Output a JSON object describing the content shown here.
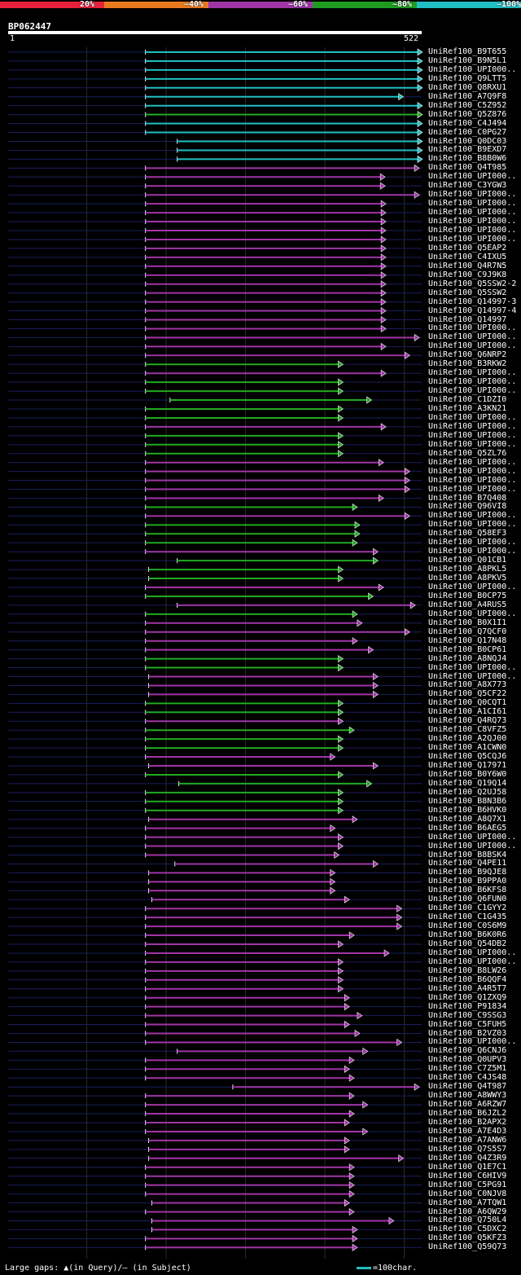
{
  "header": {
    "buckets": [
      {
        "label": "20%",
        "color": "#e8203c"
      },
      {
        "label": "~40%",
        "color": "#ea7a20"
      },
      {
        "label": "~60%",
        "color": "#a035a8"
      },
      {
        "label": "~80%",
        "color": "#1e9c22"
      },
      {
        "label": "~100%",
        "color": "#1fbfc3"
      }
    ]
  },
  "query": {
    "id": "BP062447",
    "start_label": "1",
    "end_label": "522",
    "length": 522
  },
  "colors": {
    "cyan": "#1fbfc3",
    "green": "#22aa22",
    "purple": "#a035a8",
    "dim": "#1a1f5c",
    "gap": "#ffffaa"
  },
  "chart_data": {
    "type": "alignment-map",
    "x_range": [
      1,
      522
    ],
    "hits": [
      {
        "id": "UniRef100_B9T655",
        "s": 174,
        "e": 522,
        "c": "cyan"
      },
      {
        "id": "UniRef100_B9N5L1",
        "s": 174,
        "e": 522,
        "c": "cyan"
      },
      {
        "id": "UniRef100_UPI000..",
        "s": 174,
        "e": 522,
        "c": "cyan"
      },
      {
        "id": "UniRef100_Q9LTT5",
        "s": 174,
        "e": 522,
        "c": "cyan"
      },
      {
        "id": "UniRef100_Q8RXU1",
        "s": 174,
        "e": 522,
        "c": "cyan"
      },
      {
        "id": "UniRef100_A7Q9F8",
        "s": 174,
        "e": 498,
        "c": "cyan"
      },
      {
        "id": "UniRef100_C5Z952",
        "s": 174,
        "e": 522,
        "c": "cyan"
      },
      {
        "id": "UniRef100_Q5Z876",
        "s": 174,
        "e": 522,
        "c": "green"
      },
      {
        "id": "UniRef100_C4J494",
        "s": 174,
        "e": 522,
        "c": "cyan"
      },
      {
        "id": "UniRef100_C0PG27",
        "s": 174,
        "e": 522,
        "c": "cyan"
      },
      {
        "id": "UniRef100_Q0DC03",
        "s": 214,
        "e": 522,
        "c": "cyan"
      },
      {
        "id": "UniRef100_B9EXD7",
        "s": 214,
        "e": 522,
        "c": "cyan"
      },
      {
        "id": "UniRef100_B8B0W6",
        "s": 214,
        "e": 522,
        "c": "cyan"
      },
      {
        "id": "UniRef100_Q4T985",
        "s": 174,
        "e": 518,
        "c": "purple"
      },
      {
        "id": "UniRef100_UPI000..",
        "s": 174,
        "e": 475,
        "c": "purple"
      },
      {
        "id": "UniRef100_C3YGW3",
        "s": 174,
        "e": 475,
        "c": "purple"
      },
      {
        "id": "UniRef100_UPI000..",
        "s": 174,
        "e": 518,
        "c": "purple"
      },
      {
        "id": "UniRef100_UPI000..",
        "s": 174,
        "e": 476,
        "c": "purple"
      },
      {
        "id": "UniRef100_UPI000..",
        "s": 174,
        "e": 476,
        "c": "purple"
      },
      {
        "id": "UniRef100_UPI000..",
        "s": 174,
        "e": 476,
        "c": "purple"
      },
      {
        "id": "UniRef100_UPI000..",
        "s": 174,
        "e": 476,
        "c": "purple"
      },
      {
        "id": "UniRef100_UPI000..",
        "s": 174,
        "e": 476,
        "c": "purple"
      },
      {
        "id": "UniRef100_Q5EAP2",
        "s": 174,
        "e": 476,
        "c": "purple"
      },
      {
        "id": "UniRef100_C4IXU5",
        "s": 174,
        "e": 476,
        "c": "purple"
      },
      {
        "id": "UniRef100_Q4R7N5",
        "s": 174,
        "e": 476,
        "c": "purple"
      },
      {
        "id": "UniRef100_C9J9K8",
        "s": 174,
        "e": 476,
        "c": "purple"
      },
      {
        "id": "UniRef100_Q5SSW2-2",
        "s": 174,
        "e": 476,
        "c": "purple"
      },
      {
        "id": "UniRef100_Q5SSW2",
        "s": 174,
        "e": 476,
        "c": "purple"
      },
      {
        "id": "UniRef100_Q14997-3",
        "s": 174,
        "e": 476,
        "c": "purple"
      },
      {
        "id": "UniRef100_Q14997-4",
        "s": 174,
        "e": 476,
        "c": "purple"
      },
      {
        "id": "UniRef100_Q14997",
        "s": 174,
        "e": 476,
        "c": "purple"
      },
      {
        "id": "UniRef100_UPI000..",
        "s": 174,
        "e": 476,
        "c": "purple"
      },
      {
        "id": "UniRef100_UPI000..",
        "s": 174,
        "e": 518,
        "c": "purple"
      },
      {
        "id": "UniRef100_UPI000..",
        "s": 174,
        "e": 476,
        "c": "purple"
      },
      {
        "id": "UniRef100_Q6NRP2",
        "s": 174,
        "e": 506,
        "c": "purple"
      },
      {
        "id": "UniRef100_B3RKW2",
        "s": 174,
        "e": 422,
        "c": "green"
      },
      {
        "id": "UniRef100_UPI000..",
        "s": 174,
        "e": 476,
        "c": "purple"
      },
      {
        "id": "UniRef100_UPI000..",
        "s": 174,
        "e": 422,
        "c": "green"
      },
      {
        "id": "UniRef100_UPI000..",
        "s": 174,
        "e": 422,
        "c": "green"
      },
      {
        "id": "UniRef100_C1DZI0",
        "s": 205,
        "e": 458,
        "c": "green"
      },
      {
        "id": "UniRef100_A3KN21",
        "s": 174,
        "e": 422,
        "c": "green"
      },
      {
        "id": "UniRef100_UPI000..",
        "s": 174,
        "e": 422,
        "c": "green"
      },
      {
        "id": "UniRef100_UPI000..",
        "s": 174,
        "e": 476,
        "c": "purple"
      },
      {
        "id": "UniRef100_UPI000..",
        "s": 174,
        "e": 422,
        "c": "green"
      },
      {
        "id": "UniRef100_UPI000..",
        "s": 174,
        "e": 422,
        "c": "green"
      },
      {
        "id": "UniRef100_Q5ZL76",
        "s": 174,
        "e": 422,
        "c": "green"
      },
      {
        "id": "UniRef100_UPI000..",
        "s": 174,
        "e": 473,
        "c": "purple"
      },
      {
        "id": "UniRef100_UPI000..",
        "s": 174,
        "e": 506,
        "c": "purple"
      },
      {
        "id": "UniRef100_UPI000..",
        "s": 174,
        "e": 506,
        "c": "purple"
      },
      {
        "id": "UniRef100_UPI000..",
        "s": 174,
        "e": 506,
        "c": "purple"
      },
      {
        "id": "UniRef100_B7Q408",
        "s": 174,
        "e": 473,
        "c": "purple"
      },
      {
        "id": "UniRef100_Q96VI8",
        "s": 174,
        "e": 440,
        "c": "green"
      },
      {
        "id": "UniRef100_UPI000..",
        "s": 174,
        "e": 506,
        "c": "purple"
      },
      {
        "id": "UniRef100_UPI000..",
        "s": 174,
        "e": 443,
        "c": "green"
      },
      {
        "id": "UniRef100_Q58EF3",
        "s": 174,
        "e": 443,
        "c": "green"
      },
      {
        "id": "UniRef100_UPI000..",
        "s": 174,
        "e": 440,
        "c": "green"
      },
      {
        "id": "UniRef100_UPI000..",
        "s": 174,
        "e": 466,
        "c": "purple"
      },
      {
        "id": "UniRef100_Q01CB1",
        "s": 214,
        "e": 466,
        "c": "green"
      },
      {
        "id": "UniRef100_A8PKL5",
        "s": 178,
        "e": 422,
        "c": "green"
      },
      {
        "id": "UniRef100_A8PKV5",
        "s": 178,
        "e": 422,
        "c": "green"
      },
      {
        "id": "UniRef100_UPI000..",
        "s": 174,
        "e": 473,
        "c": "purple"
      },
      {
        "id": "UniRef100_B0CP75",
        "s": 174,
        "e": 460,
        "c": "green"
      },
      {
        "id": "UniRef100_A4RUS5",
        "s": 214,
        "e": 513,
        "c": "purple"
      },
      {
        "id": "UniRef100_UPI000..",
        "s": 174,
        "e": 440,
        "c": "green"
      },
      {
        "id": "UniRef100_B0X1I1",
        "s": 174,
        "e": 446,
        "c": "purple"
      },
      {
        "id": "UniRef100_Q7QCF0",
        "s": 174,
        "e": 506,
        "c": "purple"
      },
      {
        "id": "UniRef100_Q17N48",
        "s": 174,
        "e": 440,
        "c": "purple"
      },
      {
        "id": "UniRef100_B0CP61",
        "s": 174,
        "e": 460,
        "c": "purple"
      },
      {
        "id": "UniRef100_A8NQJ4",
        "s": 174,
        "e": 422,
        "c": "green"
      },
      {
        "id": "UniRef100_UPI000..",
        "s": 174,
        "e": 422,
        "c": "green"
      },
      {
        "id": "UniRef100_UPI000..",
        "s": 178,
        "e": 466,
        "c": "purple"
      },
      {
        "id": "UniRef100_A8X773",
        "s": 178,
        "e": 466,
        "c": "purple"
      },
      {
        "id": "UniRef100_Q5CF22",
        "s": 178,
        "e": 466,
        "c": "purple"
      },
      {
        "id": "UniRef100_Q0CQT1",
        "s": 174,
        "e": 422,
        "c": "green"
      },
      {
        "id": "UniRef100_A1CI61",
        "s": 174,
        "e": 422,
        "c": "green"
      },
      {
        "id": "UniRef100_Q4RQ73",
        "s": 174,
        "e": 422,
        "c": "purple"
      },
      {
        "id": "UniRef100_C8VFZ5",
        "s": 174,
        "e": 436,
        "c": "green"
      },
      {
        "id": "UniRef100_A2QJ00",
        "s": 174,
        "e": 422,
        "c": "green"
      },
      {
        "id": "UniRef100_A1CWN0",
        "s": 174,
        "e": 422,
        "c": "green"
      },
      {
        "id": "UniRef100_Q5CQJ6",
        "s": 174,
        "e": 412,
        "c": "purple"
      },
      {
        "id": "UniRef100_Q17971",
        "s": 178,
        "e": 466,
        "c": "purple"
      },
      {
        "id": "UniRef100_B0Y6W0",
        "s": 174,
        "e": 422,
        "c": "green"
      },
      {
        "id": "UniRef100_Q19Q14",
        "s": 216,
        "e": 458,
        "c": "green"
      },
      {
        "id": "UniRef100_Q2UJ58",
        "s": 174,
        "e": 422,
        "c": "green"
      },
      {
        "id": "UniRef100_B8N3B6",
        "s": 174,
        "e": 422,
        "c": "green"
      },
      {
        "id": "UniRef100_B6HVK0",
        "s": 174,
        "e": 422,
        "c": "green"
      },
      {
        "id": "UniRef100_A8Q7X1",
        "s": 178,
        "e": 440,
        "c": "purple"
      },
      {
        "id": "UniRef100_B6AEG5",
        "s": 174,
        "e": 412,
        "c": "purple"
      },
      {
        "id": "UniRef100_UPI000..",
        "s": 174,
        "e": 422,
        "c": "purple"
      },
      {
        "id": "UniRef100_UPI000..",
        "s": 174,
        "e": 422,
        "c": "purple"
      },
      {
        "id": "UniRef100_B8BSK4",
        "s": 174,
        "e": 417,
        "c": "purple"
      },
      {
        "id": "UniRef100_Q4PE11",
        "s": 211,
        "e": 466,
        "c": "purple"
      },
      {
        "id": "UniRef100_B9QJE8",
        "s": 178,
        "e": 412,
        "c": "purple"
      },
      {
        "id": "UniRef100_B9PPA0",
        "s": 178,
        "e": 412,
        "c": "purple"
      },
      {
        "id": "UniRef100_B6KFS8",
        "s": 178,
        "e": 412,
        "c": "purple"
      },
      {
        "id": "UniRef100_Q6FUN0",
        "s": 182,
        "e": 430,
        "c": "purple"
      },
      {
        "id": "UniRef100_C1GYY2",
        "s": 174,
        "e": 496,
        "c": "purple"
      },
      {
        "id": "UniRef100_C1G435",
        "s": 174,
        "e": 496,
        "c": "purple"
      },
      {
        "id": "UniRef100_C0S6M9",
        "s": 174,
        "e": 496,
        "c": "purple"
      },
      {
        "id": "UniRef100_B6K0R6",
        "s": 174,
        "e": 436,
        "c": "purple"
      },
      {
        "id": "UniRef100_Q54DB2",
        "s": 174,
        "e": 422,
        "c": "purple"
      },
      {
        "id": "UniRef100_UPI000..",
        "s": 174,
        "e": 480,
        "c": "purple"
      },
      {
        "id": "UniRef100_UPI000..",
        "s": 174,
        "e": 422,
        "c": "purple"
      },
      {
        "id": "UniRef100_B8LW26",
        "s": 174,
        "e": 422,
        "c": "purple"
      },
      {
        "id": "UniRef100_B6QQF4",
        "s": 174,
        "e": 422,
        "c": "purple"
      },
      {
        "id": "UniRef100_A4R5T7",
        "s": 174,
        "e": 422,
        "c": "purple"
      },
      {
        "id": "UniRef100_Q1ZXQ9",
        "s": 174,
        "e": 430,
        "c": "purple"
      },
      {
        "id": "UniRef100_P91834",
        "s": 174,
        "e": 430,
        "c": "purple"
      },
      {
        "id": "UniRef100_C9SSG3",
        "s": 174,
        "e": 446,
        "c": "purple"
      },
      {
        "id": "UniRef100_C5FUH5",
        "s": 174,
        "e": 430,
        "c": "purple"
      },
      {
        "id": "UniRef100_B2VZ03",
        "s": 174,
        "e": 443,
        "c": "purple"
      },
      {
        "id": "UniRef100_UPI000..",
        "s": 174,
        "e": 496,
        "c": "purple"
      },
      {
        "id": "UniRef100_Q6CNJ6",
        "s": 214,
        "e": 453,
        "c": "purple"
      },
      {
        "id": "UniRef100_Q0UPV3",
        "s": 174,
        "e": 436,
        "c": "purple"
      },
      {
        "id": "UniRef100_C7Z5M1",
        "s": 174,
        "e": 430,
        "c": "purple"
      },
      {
        "id": "UniRef100_C4JS48",
        "s": 174,
        "e": 436,
        "c": "purple"
      },
      {
        "id": "UniRef100_Q4T987",
        "s": 284,
        "e": 518,
        "c": "purple"
      },
      {
        "id": "UniRef100_A8WWY3",
        "s": 174,
        "e": 436,
        "c": "purple"
      },
      {
        "id": "UniRef100_A6RZW7",
        "s": 174,
        "e": 453,
        "c": "purple"
      },
      {
        "id": "UniRef100_B6JZL2",
        "s": 174,
        "e": 436,
        "c": "purple"
      },
      {
        "id": "UniRef100_B2APX2",
        "s": 174,
        "e": 430,
        "c": "purple"
      },
      {
        "id": "UniRef100_A7E4D3",
        "s": 174,
        "e": 453,
        "c": "purple"
      },
      {
        "id": "UniRef100_A7ANW6",
        "s": 178,
        "e": 430,
        "c": "purple"
      },
      {
        "id": "UniRef100_Q7S5S7",
        "s": 178,
        "e": 430,
        "c": "purple"
      },
      {
        "id": "UniRef100_Q4Z3R9",
        "s": 178,
        "e": 498,
        "c": "purple"
      },
      {
        "id": "UniRef100_Q1E7C1",
        "s": 174,
        "e": 436,
        "c": "purple"
      },
      {
        "id": "UniRef100_C6HIV9",
        "s": 174,
        "e": 436,
        "c": "purple"
      },
      {
        "id": "UniRef100_C5PG91",
        "s": 174,
        "e": 436,
        "c": "purple"
      },
      {
        "id": "UniRef100_C0NJV8",
        "s": 174,
        "e": 436,
        "c": "purple"
      },
      {
        "id": "UniRef100_A7TQW1",
        "s": 182,
        "e": 430,
        "c": "purple"
      },
      {
        "id": "UniRef100_A6QW29",
        "s": 174,
        "e": 436,
        "c": "purple"
      },
      {
        "id": "UniRef100_Q750L4",
        "s": 182,
        "e": 486,
        "c": "purple"
      },
      {
        "id": "UniRef100_C5DXC2",
        "s": 182,
        "e": 440,
        "c": "purple"
      },
      {
        "id": "UniRef100_Q5KFZ3",
        "s": 174,
        "e": 440,
        "c": "purple"
      },
      {
        "id": "UniRef100_Q59Q73",
        "s": 174,
        "e": 440,
        "c": "purple"
      }
    ]
  },
  "footer": {
    "legend": "Large gaps: ▲(in Query)/— (in Subject)",
    "scale": "=100char."
  }
}
